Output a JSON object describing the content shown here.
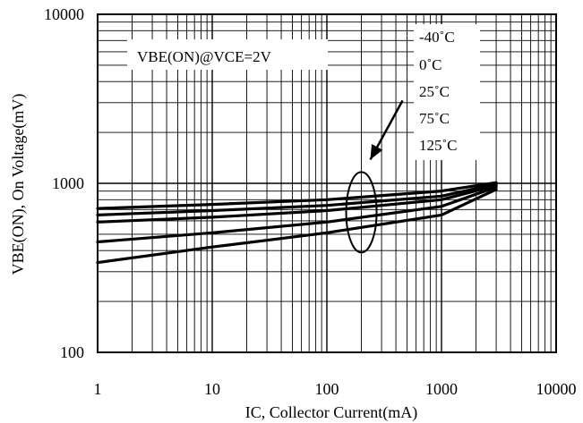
{
  "chart_data": {
    "type": "line",
    "title": "",
    "xlabel": "IC, Collector Current(mA)",
    "ylabel": "VBE(ON), On Voltage(mV)",
    "x_scale": "log",
    "y_scale": "log",
    "xlim": [
      1,
      10000
    ],
    "ylim": [
      100,
      10000
    ],
    "x_ticks": [
      "1",
      "10",
      "100",
      "1000",
      "10000"
    ],
    "y_ticks": [
      "100",
      "1000",
      "10000"
    ],
    "grid": true,
    "condition_label": "VBE(ON)@VCE=2V",
    "legend_placement": "top-right",
    "legend_entries": [
      "-40˚C",
      "0˚C",
      "25˚C",
      "75˚C",
      "125˚C"
    ],
    "series": [
      {
        "name": "-40˚C",
        "x": [
          1,
          10,
          100,
          1000,
          3000
        ],
        "y": [
          710,
          750,
          800,
          900,
          1010
        ]
      },
      {
        "name": "0˚C",
        "x": [
          1,
          10,
          100,
          1000,
          3000
        ],
        "y": [
          650,
          690,
          740,
          840,
          990
        ]
      },
      {
        "name": "25˚C",
        "x": [
          1,
          10,
          100,
          1000,
          3000
        ],
        "y": [
          590,
          630,
          690,
          800,
          970
        ]
      },
      {
        "name": "75˚C",
        "x": [
          1,
          10,
          100,
          1000,
          3000
        ],
        "y": [
          450,
          510,
          590,
          730,
          950
        ]
      },
      {
        "name": "125˚C",
        "x": [
          1,
          10,
          100,
          1000,
          3000
        ],
        "y": [
          340,
          420,
          510,
          650,
          920
        ]
      }
    ],
    "annotation": {
      "type": "ellipse-with-arrow",
      "at_x": 200
    }
  }
}
